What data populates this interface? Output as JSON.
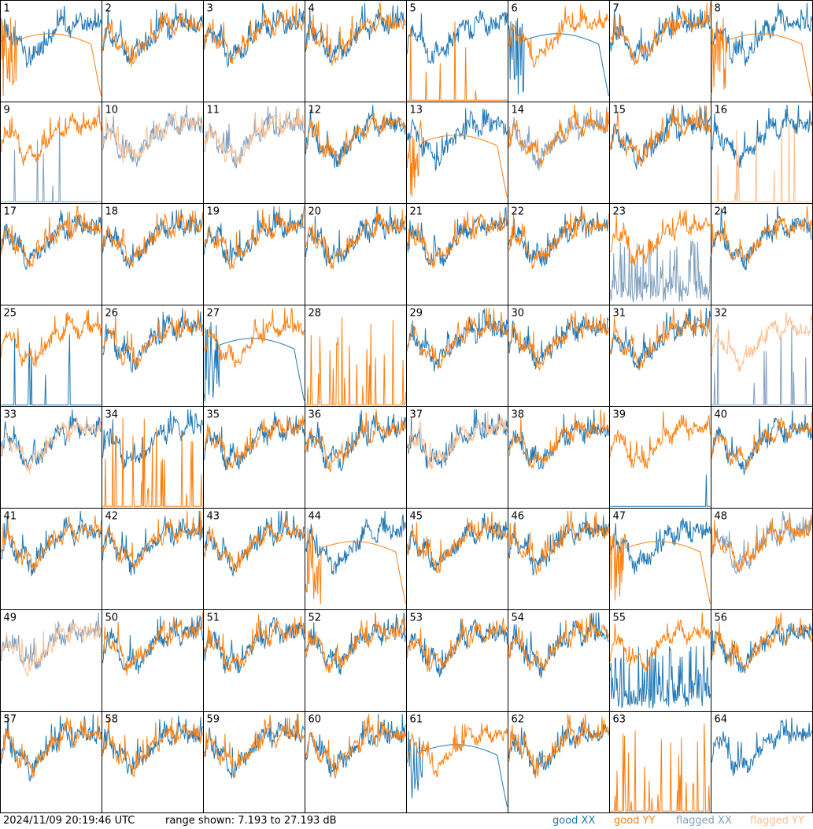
{
  "chart_data": {
    "type": "line",
    "description_free": true,
    "grid_rows": 8,
    "grid_cols": 8,
    "panels": [
      "1",
      "2",
      "3",
      "4",
      "5",
      "6",
      "7",
      "8",
      "9",
      "10",
      "11",
      "12",
      "13",
      "14",
      "15",
      "16",
      "17",
      "18",
      "19",
      "20",
      "21",
      "22",
      "23",
      "24",
      "25",
      "26",
      "27",
      "28",
      "29",
      "30",
      "31",
      "32",
      "33",
      "34",
      "35",
      "36",
      "37",
      "38",
      "39",
      "40",
      "41",
      "42",
      "43",
      "44",
      "45",
      "46",
      "47",
      "48",
      "49",
      "50",
      "51",
      "52",
      "53",
      "54",
      "55",
      "56",
      "57",
      "58",
      "59",
      "60",
      "61",
      "62",
      "63",
      "64"
    ],
    "y_range_db": [
      7.193,
      27.193
    ],
    "series_legend": [
      {
        "name": "good XX",
        "color": "#1f77b4"
      },
      {
        "name": "good YY",
        "color": "#ff7f0e"
      },
      {
        "name": "flagged XX",
        "color": "#7f9fbf"
      },
      {
        "name": "flagged YY",
        "color": "#ffbf8f"
      }
    ],
    "panel_styles": {
      "1": [
        "gx",
        "dy"
      ],
      "5": [
        "gx",
        "sy"
      ],
      "6": [
        "dx2",
        "gy"
      ],
      "8": [
        "gx",
        "dy"
      ],
      "9": [
        "sxf",
        "gy"
      ],
      "10": [
        "fx",
        "fy"
      ],
      "11": [
        "fx",
        "fy"
      ],
      "13": [
        "gx",
        "dy"
      ],
      "14": [
        "fx",
        "gy"
      ],
      "16": [
        "gx",
        "syf"
      ],
      "23": [
        "nxf",
        "gy"
      ],
      "25": [
        "sx",
        "gy"
      ],
      "27": [
        "dx2",
        "gy"
      ],
      "28": [
        "none",
        "sy2"
      ],
      "32": [
        "sxf",
        "fy"
      ],
      "33": [
        "gx",
        "fy"
      ],
      "34": [
        "gx",
        "sy2"
      ],
      "37": [
        "gx",
        "fy"
      ],
      "39": [
        "sx",
        "gy"
      ],
      "44": [
        "gx",
        "dy"
      ],
      "47": [
        "gx",
        "dy"
      ],
      "48": [
        "fx",
        "gy"
      ],
      "49": [
        "fx",
        "fy"
      ],
      "55": [
        "nx",
        "gy"
      ],
      "61": [
        "dx2",
        "gy"
      ],
      "63": [
        "none",
        "sy2"
      ],
      "64": [
        "gx",
        "none"
      ]
    }
  },
  "footer": {
    "timestamp": "2024/11/09 20:19:46 UTC",
    "range": "range shown: 7.193 to 27.193 dB",
    "legend": [
      "good XX",
      "good YY",
      "flagged XX",
      "flagged YY"
    ]
  },
  "colors": {
    "good_xx": "#1f77b4",
    "good_yy": "#ff7f0e",
    "flagged_xx": "#7f9fbf",
    "flagged_yy": "#ffbf8f",
    "grid": "#000000"
  }
}
